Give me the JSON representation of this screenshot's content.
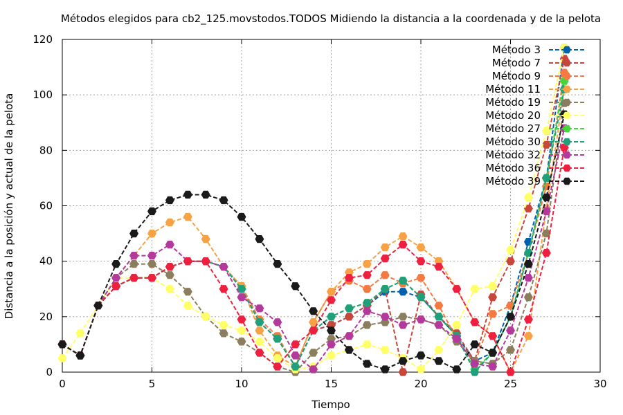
{
  "chart_data": {
    "type": "line",
    "title": "Métodos elegidos para cb2_125.movstodos.TODOS Midiendo la distancia a la coordenada y de la pelota",
    "xlabel": "Tiempo",
    "ylabel": "Distancia a la posición y actual de la pelota",
    "xlim": [
      0,
      30
    ],
    "ylim": [
      0,
      120
    ],
    "xticks": [
      "0",
      "5",
      "10",
      "15",
      "20",
      "25",
      "30"
    ],
    "yticks": [
      "0",
      "20",
      "40",
      "60",
      "80",
      "100",
      "120"
    ],
    "grid": true,
    "legend_position": "top-right",
    "x": [
      0,
      1,
      2,
      3,
      4,
      5,
      6,
      7,
      8,
      9,
      10,
      11,
      12,
      13,
      14,
      15,
      16,
      17,
      18,
      19,
      20,
      21,
      22,
      23,
      24,
      25,
      26,
      27,
      28
    ],
    "series": [
      {
        "name": "Método 3",
        "color": "#0060ad",
        "values": [
          10,
          6,
          24,
          31,
          34,
          34,
          38,
          40,
          40,
          38,
          30,
          18,
          12,
          2,
          15,
          17,
          20,
          24,
          29,
          29,
          27,
          20,
          13,
          4,
          7,
          24,
          47,
          70,
          117
        ]
      },
      {
        "name": "Método 7",
        "color": "#c8473c",
        "values": [
          10,
          6,
          24,
          31,
          34,
          34,
          38,
          40,
          40,
          38,
          30,
          18,
          12,
          2,
          15,
          17,
          20,
          24,
          30,
          0,
          28,
          20,
          14,
          4,
          27,
          40,
          59,
          82,
          113
        ]
      },
      {
        "name": "Método 9",
        "color": "#f47a41",
        "values": [
          10,
          6,
          24,
          31,
          34,
          34,
          38,
          40,
          40,
          38,
          31,
          19,
          13,
          2,
          18,
          29,
          33,
          30,
          35,
          32,
          34,
          24,
          12,
          3,
          21,
          24,
          43,
          67,
          108
        ]
      },
      {
        "name": "Método 11",
        "color": "#f6a245",
        "values": [
          10,
          6,
          24,
          34,
          42,
          50,
          54,
          56,
          48,
          38,
          31,
          15,
          6,
          2,
          18,
          29,
          36,
          39,
          45,
          49,
          45,
          40,
          30,
          18,
          13,
          0,
          13,
          59,
          102
        ]
      },
      {
        "name": "Método 19",
        "color": "#8b7e5e",
        "values": [
          10,
          6,
          24,
          34,
          39,
          39,
          35,
          29,
          20,
          14,
          11,
          7,
          2,
          0,
          7,
          12,
          13,
          17,
          18,
          20,
          19,
          17,
          11,
          4,
          3,
          8,
          27,
          50,
          97
        ]
      },
      {
        "name": "Método 20",
        "color": "#ffff66",
        "values": [
          5,
          14,
          24,
          34,
          34,
          34,
          30,
          24,
          20,
          17,
          15,
          11,
          5,
          1,
          2,
          6,
          8,
          10,
          8,
          5,
          1,
          8,
          17,
          30,
          31,
          44,
          63,
          87,
          117
        ]
      },
      {
        "name": "Método 27",
        "color": "#44d63c",
        "values": [
          10,
          6,
          24,
          31,
          34,
          34,
          38,
          40,
          40,
          38,
          30,
          18,
          12,
          2,
          15,
          20,
          23,
          25,
          30,
          33,
          27,
          20,
          13,
          1,
          7,
          20,
          43,
          70,
          105
        ]
      },
      {
        "name": "Método 30",
        "color": "#20a07a",
        "values": [
          10,
          6,
          24,
          31,
          34,
          34,
          38,
          40,
          40,
          38,
          30,
          18,
          12,
          2,
          15,
          20,
          23,
          25,
          30,
          33,
          27,
          20,
          13,
          0,
          7,
          20,
          43,
          70,
          102
        ]
      },
      {
        "name": "Método 32",
        "color": "#b3399b",
        "values": [
          10,
          6,
          24,
          34,
          42,
          42,
          46,
          40,
          40,
          38,
          27,
          23,
          18,
          6,
          1,
          10,
          13,
          22,
          20,
          17,
          19,
          17,
          12,
          3,
          2,
          15,
          34,
          58,
          88
        ]
      },
      {
        "name": "Método 36",
        "color": "#ee2040",
        "values": [
          10,
          6,
          24,
          31,
          34,
          34,
          38,
          40,
          40,
          30,
          19,
          7,
          2,
          10,
          15,
          26,
          34,
          35,
          41,
          46,
          40,
          38,
          30,
          18,
          13,
          0,
          19,
          43,
          81
        ]
      },
      {
        "name": "Método 39",
        "color": "#1a1a1a",
        "values": [
          10,
          6,
          24,
          39,
          50,
          58,
          62,
          64,
          64,
          62,
          56,
          48,
          39,
          31,
          22,
          15,
          8,
          3,
          1,
          4,
          6,
          4,
          1,
          10,
          7,
          20,
          39,
          63,
          93
        ]
      }
    ]
  }
}
